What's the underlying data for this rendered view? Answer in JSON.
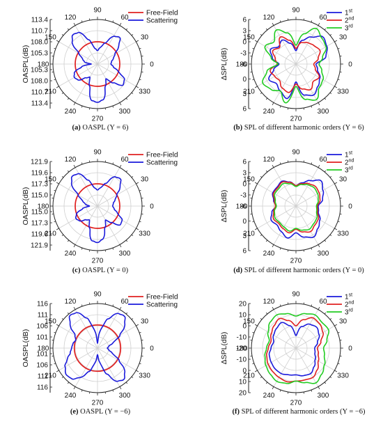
{
  "chart_data": [
    {
      "type": "polar-line",
      "panel": "a",
      "caption_tag": "(a)",
      "caption_text": " OASPL (Y = 6)",
      "ylabel": "OASPL(dB)",
      "r_ticks": [
        "113.4",
        "110.7",
        "108.0",
        "105.3"
      ],
      "r_ticks_lower": [
        "105.3",
        "108.0",
        "110.7",
        "113.4"
      ],
      "center_label": "",
      "angle_labels": [
        "0",
        "30",
        "60",
        "90",
        "120",
        "150",
        "180",
        "210",
        "240",
        "270",
        "300",
        "330"
      ],
      "legend": [
        {
          "name": "Free-Field",
          "color": "#e02020"
        },
        {
          "name": "Scattering",
          "color": "#1a1adb"
        }
      ],
      "series": [
        {
          "name": "Free-Field",
          "color": "#e02020",
          "angles": [
            0,
            45,
            90,
            135,
            180,
            225,
            270,
            315
          ],
          "r": [
            0.5,
            0.5,
            0.5,
            0.5,
            0.5,
            0.5,
            0.5,
            0.5
          ]
        },
        {
          "name": "Scattering",
          "color": "#1a1adb",
          "angles": [
            0,
            10,
            20,
            30,
            40,
            50,
            60,
            70,
            80,
            90,
            100,
            110,
            120,
            130,
            140,
            150,
            160,
            170,
            180,
            190,
            200,
            210,
            220,
            230,
            240,
            250,
            260,
            270,
            280,
            290,
            300,
            310,
            320,
            330,
            340,
            350
          ],
          "r": [
            0.3,
            0.32,
            0.38,
            0.45,
            0.62,
            0.78,
            0.72,
            0.5,
            0.38,
            0.3,
            0.36,
            0.58,
            0.82,
            0.86,
            0.74,
            0.48,
            0.36,
            0.3,
            0.14,
            0.36,
            0.55,
            0.6,
            0.56,
            0.4,
            0.34,
            0.52,
            0.82,
            0.86,
            0.8,
            0.52,
            0.38,
            0.55,
            0.74,
            0.7,
            0.5,
            0.36
          ]
        }
      ]
    },
    {
      "type": "polar-line",
      "panel": "b",
      "caption_tag": "(b)",
      "caption_text": " SPL of different harmonic orders (Y = 6)",
      "ylabel": "ΔSPL(dB)",
      "r_ticks": [
        "6",
        "3",
        "0",
        "-3"
      ],
      "r_ticks_lower": [
        "0",
        "3",
        "6"
      ],
      "center_label": "-6",
      "angle_labels": [
        "0",
        "30",
        "60",
        "90",
        "120",
        "150",
        "180",
        "210",
        "240",
        "270",
        "300",
        "330"
      ],
      "legend": [
        {
          "name": "1",
          "sup": "st",
          "color": "#1a1adb"
        },
        {
          "name": "2",
          "sup": "nd",
          "color": "#e02020"
        },
        {
          "name": "3",
          "sup": "rd",
          "color": "#22cc22"
        }
      ],
      "series": [
        {
          "name": "1st",
          "color": "#1a1adb",
          "angles": [
            0,
            15,
            30,
            45,
            60,
            75,
            90,
            105,
            120,
            135,
            150,
            165,
            180,
            195,
            210,
            225,
            240,
            255,
            270,
            285,
            300,
            315,
            330,
            345
          ],
          "r": [
            0.45,
            0.7,
            0.8,
            0.86,
            0.7,
            0.55,
            0.3,
            0.48,
            0.62,
            0.55,
            0.66,
            0.55,
            0.38,
            0.52,
            0.7,
            0.62,
            0.7,
            0.8,
            0.4,
            0.72,
            0.8,
            0.7,
            0.62,
            0.5
          ]
        },
        {
          "name": "2nd",
          "color": "#e02020",
          "angles": [
            0,
            15,
            30,
            45,
            60,
            75,
            90,
            105,
            120,
            135,
            150,
            165,
            180,
            195,
            210,
            225,
            240,
            255,
            270,
            285,
            300,
            315,
            330,
            345
          ],
          "r": [
            0.4,
            0.52,
            0.62,
            0.58,
            0.55,
            0.5,
            0.35,
            0.55,
            0.7,
            0.52,
            0.6,
            0.48,
            0.42,
            0.6,
            0.55,
            0.52,
            0.62,
            0.66,
            0.45,
            0.58,
            0.66,
            0.55,
            0.6,
            0.45
          ]
        },
        {
          "name": "3rd",
          "color": "#22cc22",
          "angles": [
            0,
            15,
            30,
            45,
            60,
            75,
            90,
            105,
            120,
            135,
            150,
            165,
            180,
            195,
            210,
            225,
            240,
            255,
            270,
            285,
            300,
            315,
            330,
            345
          ],
          "r": [
            0.52,
            0.62,
            0.78,
            0.82,
            0.92,
            0.7,
            0.42,
            0.72,
            0.88,
            0.7,
            0.8,
            0.58,
            0.4,
            0.68,
            0.86,
            0.8,
            0.7,
            0.9,
            0.5,
            0.82,
            0.92,
            0.74,
            0.7,
            0.6
          ]
        }
      ]
    },
    {
      "type": "polar-line",
      "panel": "c",
      "caption_tag": "(c)",
      "caption_text": " OASPL (Y = 0)",
      "ylabel": "OASPL(dB)",
      "r_ticks": [
        "121.9",
        "119.6",
        "117.3",
        "115.0"
      ],
      "r_ticks_lower": [
        "115.0",
        "117.3",
        "119.6",
        "121.9"
      ],
      "center_label": "",
      "angle_labels": [
        "0",
        "30",
        "60",
        "90",
        "120",
        "150",
        "180",
        "210",
        "240",
        "270",
        "300",
        "330"
      ],
      "legend": [
        {
          "name": "Free-Field",
          "color": "#e02020"
        },
        {
          "name": "Scattering",
          "color": "#1a1adb"
        }
      ],
      "series": [
        {
          "name": "Free-Field",
          "color": "#e02020",
          "angles": [
            0,
            45,
            90,
            135,
            180,
            225,
            270,
            315
          ],
          "r": [
            0.5,
            0.5,
            0.5,
            0.5,
            0.5,
            0.5,
            0.5,
            0.5
          ]
        },
        {
          "name": "Scattering",
          "color": "#1a1adb",
          "angles": [
            0,
            10,
            20,
            30,
            40,
            50,
            60,
            70,
            80,
            90,
            100,
            110,
            120,
            130,
            140,
            150,
            160,
            170,
            180,
            190,
            200,
            210,
            220,
            230,
            240,
            250,
            260,
            270,
            280,
            290,
            300,
            310,
            320,
            330,
            340,
            350
          ],
          "r": [
            0.34,
            0.36,
            0.42,
            0.5,
            0.66,
            0.8,
            0.76,
            0.54,
            0.42,
            0.36,
            0.42,
            0.62,
            0.84,
            0.88,
            0.76,
            0.5,
            0.36,
            0.28,
            0.18,
            0.34,
            0.5,
            0.56,
            0.52,
            0.4,
            0.36,
            0.52,
            0.78,
            0.82,
            0.74,
            0.5,
            0.36,
            0.48,
            0.66,
            0.64,
            0.48,
            0.38
          ]
        }
      ]
    },
    {
      "type": "polar-line",
      "panel": "d",
      "caption_tag": "(d)",
      "caption_text": " SPL of different harmonic orders (Y = 0)",
      "ylabel": "ΔSPL(dB)",
      "r_ticks": [
        "6",
        "3",
        "0",
        "-3"
      ],
      "r_ticks_lower": [
        "0",
        "3",
        "6"
      ],
      "center_label": "-6",
      "angle_labels": [
        "0",
        "30",
        "60",
        "90",
        "120",
        "150",
        "180",
        "210",
        "240",
        "270",
        "300",
        "330"
      ],
      "legend": [
        {
          "name": "1",
          "sup": "st",
          "color": "#1a1adb"
        },
        {
          "name": "2",
          "sup": "nd",
          "color": "#e02020"
        },
        {
          "name": "3",
          "sup": "rd",
          "color": "#22cc22"
        }
      ],
      "series": [
        {
          "name": "1st",
          "color": "#1a1adb",
          "angles": [
            0,
            15,
            30,
            45,
            60,
            75,
            90,
            105,
            120,
            135,
            150,
            165,
            180,
            195,
            210,
            225,
            240,
            255,
            270,
            285,
            300,
            315,
            330,
            345
          ],
          "r": [
            0.5,
            0.62,
            0.7,
            0.8,
            0.66,
            0.54,
            0.46,
            0.56,
            0.64,
            0.6,
            0.6,
            0.52,
            0.44,
            0.56,
            0.64,
            0.6,
            0.66,
            0.74,
            0.6,
            0.72,
            0.8,
            0.7,
            0.62,
            0.52
          ]
        },
        {
          "name": "2nd",
          "color": "#e02020",
          "angles": [
            0,
            15,
            30,
            45,
            60,
            75,
            90,
            105,
            120,
            135,
            150,
            165,
            180,
            195,
            210,
            225,
            240,
            255,
            270,
            285,
            300,
            315,
            330,
            345
          ],
          "r": [
            0.48,
            0.56,
            0.6,
            0.62,
            0.58,
            0.52,
            0.46,
            0.55,
            0.62,
            0.58,
            0.58,
            0.5,
            0.46,
            0.52,
            0.58,
            0.55,
            0.58,
            0.62,
            0.52,
            0.6,
            0.66,
            0.6,
            0.58,
            0.5
          ]
        },
        {
          "name": "3rd",
          "color": "#22cc22",
          "angles": [
            0,
            15,
            30,
            45,
            60,
            75,
            90,
            105,
            120,
            135,
            150,
            165,
            180,
            195,
            210,
            225,
            240,
            255,
            270,
            285,
            300,
            315,
            330,
            345
          ],
          "r": [
            0.46,
            0.52,
            0.56,
            0.58,
            0.55,
            0.5,
            0.44,
            0.52,
            0.58,
            0.55,
            0.55,
            0.48,
            0.44,
            0.5,
            0.54,
            0.52,
            0.54,
            0.58,
            0.5,
            0.56,
            0.6,
            0.56,
            0.54,
            0.48
          ]
        }
      ]
    },
    {
      "type": "polar-line",
      "panel": "e",
      "caption_tag": "(e)",
      "caption_text": " OASPL (Y = −6)",
      "ylabel": "OASPL(dB)",
      "r_ticks": [
        "116",
        "111",
        "106",
        "101"
      ],
      "r_ticks_lower": [
        "101",
        "106",
        "111",
        "116"
      ],
      "center_label": "",
      "angle_labels": [
        "0",
        "30",
        "60",
        "90",
        "120",
        "150",
        "180",
        "210",
        "240",
        "270",
        "300",
        "330"
      ],
      "legend": [
        {
          "name": "Free-Field",
          "color": "#e02020"
        },
        {
          "name": "Scattering",
          "color": "#1a1adb"
        }
      ],
      "series": [
        {
          "name": "Free-Field",
          "color": "#e02020",
          "angles": [
            0,
            45,
            90,
            135,
            180,
            225,
            270,
            315
          ],
          "r": [
            0.52,
            0.52,
            0.52,
            0.52,
            0.52,
            0.52,
            0.52,
            0.52
          ]
        },
        {
          "name": "Scattering",
          "color": "#1a1adb",
          "angles": [
            0,
            10,
            20,
            30,
            40,
            50,
            60,
            70,
            80,
            90,
            100,
            110,
            120,
            130,
            140,
            150,
            160,
            170,
            180,
            190,
            200,
            210,
            220,
            230,
            240,
            250,
            260,
            270,
            280,
            290,
            300,
            310,
            320,
            330,
            340,
            350
          ],
          "r": [
            0.22,
            0.26,
            0.38,
            0.58,
            0.8,
            0.94,
            0.9,
            0.7,
            0.42,
            0.1,
            0.42,
            0.72,
            0.92,
            0.96,
            0.8,
            0.58,
            0.52,
            0.56,
            0.58,
            0.62,
            0.72,
            0.84,
            0.92,
            0.9,
            0.76,
            0.56,
            0.34,
            0.14,
            0.34,
            0.62,
            0.86,
            0.92,
            0.8,
            0.56,
            0.36,
            0.26
          ]
        }
      ]
    },
    {
      "type": "polar-line",
      "panel": "f",
      "caption_tag": "(f)",
      "caption_text": " SPL of different harmonic orders (Y = −6)",
      "ylabel": "ΔSPL(dB)",
      "r_ticks": [
        "20",
        "10",
        "0",
        "-10"
      ],
      "r_ticks_lower": [
        "-10",
        "0",
        "10",
        "20"
      ],
      "center_label": "-20",
      "angle_labels": [
        "0",
        "30",
        "60",
        "90",
        "120",
        "150",
        "180",
        "210",
        "240",
        "270",
        "300",
        "330"
      ],
      "legend": [
        {
          "name": "1",
          "sup": "st",
          "color": "#1a1adb"
        },
        {
          "name": "2",
          "sup": "nd",
          "color": "#e02020"
        },
        {
          "name": "3",
          "sup": "rd",
          "color": "#22cc22"
        }
      ],
      "series": [
        {
          "name": "1st",
          "color": "#1a1adb",
          "angles": [
            0,
            15,
            30,
            45,
            60,
            75,
            90,
            105,
            120,
            135,
            150,
            165,
            180,
            195,
            210,
            225,
            240,
            255,
            270,
            285,
            300,
            315,
            330,
            345
          ],
          "r": [
            0.42,
            0.5,
            0.6,
            0.66,
            0.62,
            0.5,
            0.28,
            0.52,
            0.66,
            0.62,
            0.58,
            0.52,
            0.56,
            0.62,
            0.64,
            0.66,
            0.66,
            0.62,
            0.6,
            0.64,
            0.66,
            0.58,
            0.5,
            0.44
          ]
        },
        {
          "name": "2nd",
          "color": "#e02020",
          "angles": [
            0,
            15,
            30,
            45,
            60,
            75,
            90,
            105,
            120,
            135,
            150,
            165,
            180,
            195,
            210,
            225,
            240,
            255,
            270,
            285,
            300,
            315,
            330,
            345
          ],
          "r": [
            0.48,
            0.58,
            0.7,
            0.76,
            0.78,
            0.66,
            0.5,
            0.64,
            0.76,
            0.7,
            0.64,
            0.58,
            0.62,
            0.68,
            0.72,
            0.74,
            0.76,
            0.78,
            0.74,
            0.74,
            0.76,
            0.68,
            0.58,
            0.52
          ]
        },
        {
          "name": "3rd",
          "color": "#22cc22",
          "angles": [
            0,
            15,
            30,
            45,
            60,
            75,
            90,
            105,
            120,
            135,
            150,
            165,
            180,
            195,
            210,
            225,
            240,
            255,
            270,
            285,
            300,
            315,
            330,
            345
          ],
          "r": [
            0.62,
            0.72,
            0.84,
            0.82,
            0.86,
            0.8,
            0.72,
            0.8,
            0.86,
            0.82,
            0.72,
            0.62,
            0.66,
            0.72,
            0.78,
            0.82,
            0.86,
            0.82,
            0.74,
            0.8,
            0.9,
            0.82,
            0.74,
            0.66
          ]
        }
      ]
    }
  ]
}
